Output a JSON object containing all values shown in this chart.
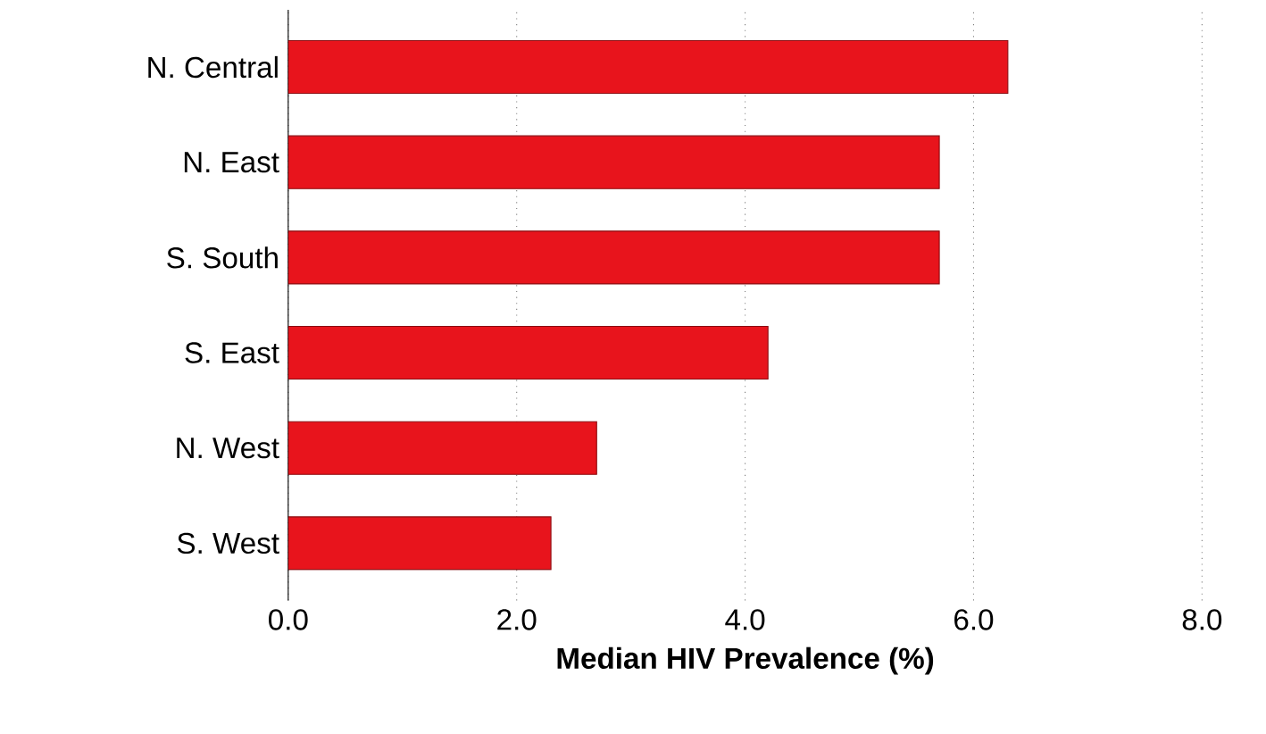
{
  "chart_data": {
    "type": "bar",
    "orientation": "horizontal",
    "xlabel": "Median HIV Prevalence (%)",
    "categories": [
      "N. Central",
      "N. East",
      "S. South",
      "S. East",
      "N. West",
      "S. West"
    ],
    "values": [
      6.3,
      5.7,
      5.7,
      4.2,
      2.7,
      2.3
    ],
    "color": "#e8141c",
    "xlim": [
      0,
      8
    ],
    "xticks": [
      {
        "value": 0,
        "label": "0.0"
      },
      {
        "value": 2,
        "label": "2.0"
      },
      {
        "value": 4,
        "label": "4.0"
      },
      {
        "value": 6,
        "label": "6.0"
      },
      {
        "value": 8,
        "label": "8.0"
      }
    ],
    "grid": "x"
  }
}
